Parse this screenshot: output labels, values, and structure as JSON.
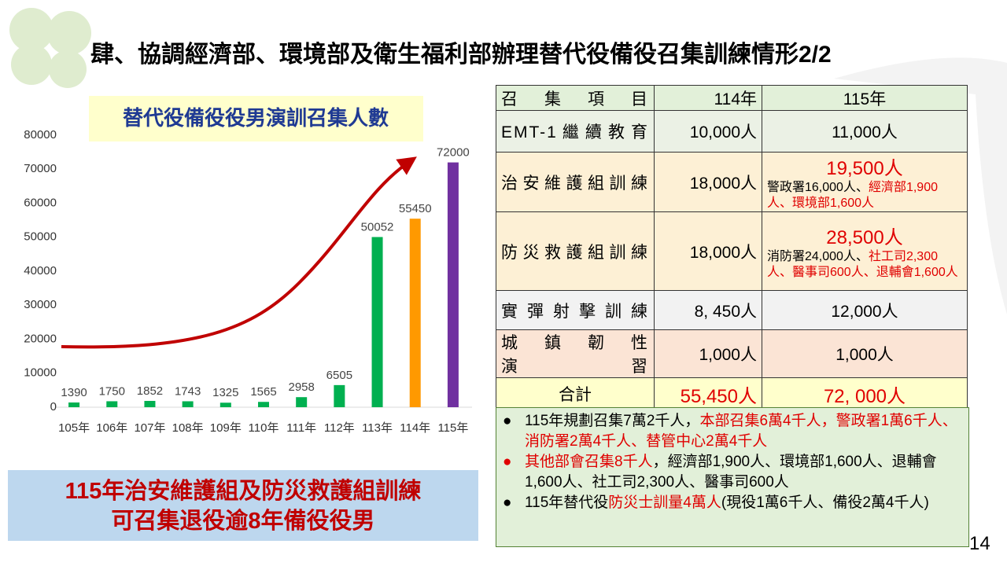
{
  "title": "肆、協調經濟部、環境部及衛生福利部辦理替代役備役召集訓練情形2/2",
  "chart_data": {
    "type": "bar",
    "title": "替代役備役役男演訓召集人數",
    "categories": [
      "105年",
      "106年",
      "107年",
      "108年",
      "109年",
      "110年",
      "111年",
      "112年",
      "113年",
      "114年",
      "115年"
    ],
    "values": [
      1390,
      1750,
      1852,
      1743,
      1325,
      1565,
      2958,
      6505,
      50052,
      55450,
      72000
    ],
    "colors": [
      "#00b050",
      "#00b050",
      "#00b050",
      "#00b050",
      "#00b050",
      "#00b050",
      "#00b050",
      "#00b050",
      "#00b050",
      "#ff9900",
      "#7030a0"
    ],
    "ylim": [
      0,
      80000
    ],
    "yticks": [
      0,
      10000,
      20000,
      30000,
      40000,
      50000,
      60000,
      70000,
      80000
    ],
    "grid": false
  },
  "table": {
    "header": [
      {
        "lines": [
          "召集項目"
        ]
      },
      {
        "lines": [
          "114年"
        ]
      },
      {
        "lines": [
          "115年"
        ]
      }
    ],
    "rows": [
      [
        {
          "lines": [
            "EMT-1繼續教育"
          ]
        },
        {
          "lines": [
            "10,000人"
          ]
        },
        {
          "lines": [
            "11,000人"
          ]
        }
      ],
      [
        {
          "lines": [
            "治安維護組訓練"
          ]
        },
        {
          "lines": [
            "18,000人"
          ]
        },
        {
          "lines": [
            "19,500人"
          ],
          "red": true,
          "detail": [
            {
              "text": "警政署16,000人、"
            },
            {
              "text": "經濟部1,900人、環境部1,600人",
              "red": true
            }
          ]
        }
      ],
      [
        {
          "lines": [
            "防災救護組訓練"
          ]
        },
        {
          "lines": [
            "18,000人"
          ]
        },
        {
          "lines": [
            "28,500人"
          ],
          "red": true,
          "detail": [
            {
              "text": "消防署24,000人、"
            },
            {
              "text": "社工司2,300人、醫事司600人、退輔會1,600人",
              "red": true
            }
          ]
        }
      ],
      [
        {
          "lines": [
            "實彈射擊訓練"
          ]
        },
        {
          "lines": [
            "8, 450人"
          ]
        },
        {
          "lines": [
            "12,000人"
          ]
        }
      ],
      [
        {
          "lines": [
            "城鎮韌性",
            "演習"
          ]
        },
        {
          "lines": [
            "1,000人"
          ]
        },
        {
          "lines": [
            "1,000人"
          ]
        }
      ],
      [
        {
          "lines": [
            "合計"
          ]
        },
        {
          "lines": [
            "55,450人"
          ],
          "red": true
        },
        {
          "lines": [
            "72, 000人"
          ],
          "red": true
        }
      ]
    ]
  },
  "notes": [
    {
      "segments": [
        {
          "text": "115年規劃召集7萬2千人，"
        },
        {
          "text": "本部召集6萬4千人，警政署1萬6千人、消防署2萬4千人、替管中心2萬4千人",
          "red": true
        }
      ]
    },
    {
      "bullet_red": true,
      "segments": [
        {
          "text": "其他部會召集8千人",
          "red": true
        },
        {
          "text": "，經濟部1,900人、環境部1,600人、退輔會1,600人、社工司2,300人、醫事司600人"
        }
      ]
    },
    {
      "segments": [
        {
          "text": "115年替代役"
        },
        {
          "text": "防災士訓量4萬人",
          "red": true
        },
        {
          "text": "(現役1萬6千人、備役2萬4千人)"
        }
      ]
    }
  ],
  "banner": [
    "115年治安維護組及防災救護組訓練",
    "可召集退役逾8年備役役男"
  ],
  "page_number": "14"
}
